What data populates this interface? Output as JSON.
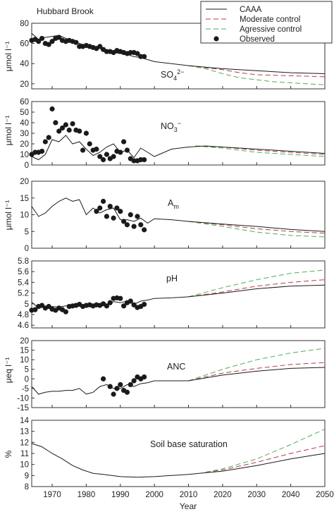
{
  "figure": {
    "site_label": "Hubbard Brook",
    "xlabel": "Year",
    "colors": {
      "caaa": "#1a1a1a",
      "moderate": "#b83a46",
      "aggressive": "#4caf50",
      "observed": "#1a1a1a"
    },
    "legend": {
      "entries": [
        {
          "label": "CAAA",
          "style": "solid",
          "color": "#1a1a1a"
        },
        {
          "label": "Moderate control",
          "style": "dashed",
          "color": "#b83a46"
        },
        {
          "label": "Agressive control",
          "style": "dashed",
          "color": "#4caf50"
        },
        {
          "label": "Observed",
          "style": "marker",
          "color": "#1a1a1a"
        }
      ]
    }
  },
  "chart_data": [
    {
      "type": "line",
      "title": "",
      "panel_label": "SO4",
      "panel_label_sub": "4",
      "panel_label_sup": "2−",
      "ylabel": "μmol l⁻¹",
      "xlim": [
        1964,
        2050
      ],
      "ylim": [
        15,
        80
      ],
      "yticks": [
        20,
        40,
        60,
        80
      ],
      "series": [
        {
          "name": "CAAA",
          "style": "solid",
          "x": [
            1964,
            1966,
            1968,
            1970,
            1972,
            1974,
            1976,
            1978,
            1980,
            1982,
            1984,
            1986,
            1988,
            1990,
            1992,
            1994,
            1996,
            1998,
            2000,
            2005,
            2010,
            2020,
            2030,
            2040,
            2050
          ],
          "y": [
            70,
            64,
            66,
            67,
            68,
            65,
            63,
            60,
            58,
            57,
            55,
            53,
            51,
            50,
            49,
            47,
            46,
            44,
            42,
            40,
            38,
            35,
            33,
            31,
            30
          ]
        },
        {
          "name": "Moderate control",
          "style": "dashed",
          "x": [
            2010,
            2015,
            2020,
            2025,
            2030,
            2040,
            2050
          ],
          "y": [
            38,
            36,
            34,
            31,
            29,
            28,
            27
          ]
        },
        {
          "name": "Agressive control",
          "style": "dashed",
          "x": [
            2010,
            2015,
            2020,
            2025,
            2030,
            2035,
            2040,
            2050
          ],
          "y": [
            38,
            35,
            30,
            26,
            24,
            22,
            21,
            19
          ]
        }
      ],
      "observed": {
        "x": [
          1964,
          1965,
          1966,
          1967,
          1968,
          1969,
          1970,
          1971,
          1972,
          1973,
          1974,
          1975,
          1976,
          1977,
          1978,
          1979,
          1980,
          1981,
          1982,
          1983,
          1984,
          1985,
          1986,
          1987,
          1988,
          1989,
          1990,
          1991,
          1992,
          1993,
          1994,
          1995,
          1996,
          1997
        ],
        "y": [
          63,
          64,
          62,
          65,
          60,
          59,
          62,
          65,
          66,
          63,
          62,
          63,
          62,
          61,
          57,
          57,
          58,
          57,
          56,
          55,
          57,
          54,
          52,
          52,
          51,
          53,
          52,
          51,
          50,
          51,
          51,
          50,
          47,
          47
        ]
      }
    },
    {
      "type": "line",
      "title": "",
      "panel_label": "NO3",
      "panel_label_sub": "3",
      "panel_label_sup": "−",
      "ylabel": "μmol l⁻¹",
      "xlim": [
        1964,
        2050
      ],
      "ylim": [
        0,
        60
      ],
      "yticks": [
        0,
        10,
        20,
        30,
        40,
        50,
        60
      ],
      "series": [
        {
          "name": "CAAA",
          "style": "solid",
          "x": [
            1964,
            1966,
            1968,
            1970,
            1972,
            1974,
            1976,
            1978,
            1980,
            1982,
            1984,
            1986,
            1988,
            1990,
            1992,
            1994,
            1996,
            1998,
            2000,
            2005,
            2010,
            2015,
            2020,
            2030,
            2040,
            2050
          ],
          "y": [
            8,
            5,
            10,
            24,
            22,
            28,
            20,
            22,
            15,
            9,
            12,
            17,
            20,
            12,
            14,
            7,
            16,
            12,
            8,
            15,
            17,
            18,
            17,
            15,
            13,
            11
          ]
        },
        {
          "name": "Moderate control",
          "style": "dashed",
          "x": [
            2012,
            2020,
            2030,
            2040,
            2050
          ],
          "y": [
            18,
            17,
            14,
            12,
            10
          ]
        },
        {
          "name": "Agressive control",
          "style": "dashed",
          "x": [
            2012,
            2020,
            2030,
            2040,
            2050
          ],
          "y": [
            18,
            16,
            12,
            10,
            8
          ]
        }
      ],
      "observed": {
        "x": [
          1964,
          1965,
          1966,
          1967,
          1968,
          1969,
          1970,
          1971,
          1972,
          1973,
          1974,
          1975,
          1976,
          1977,
          1978,
          1979,
          1980,
          1981,
          1982,
          1983,
          1984,
          1985,
          1986,
          1987,
          1988,
          1989,
          1990,
          1991,
          1992,
          1993,
          1994,
          1995,
          1996,
          1997
        ],
        "y": [
          10,
          12,
          12,
          13,
          22,
          26,
          53,
          40,
          32,
          35,
          38,
          33,
          39,
          33,
          32,
          14,
          30,
          20,
          14,
          15,
          8,
          5,
          10,
          6,
          8,
          13,
          12,
          22,
          14,
          6,
          4,
          4,
          5,
          5
        ]
      }
    },
    {
      "type": "line",
      "title": "",
      "panel_label": "Al",
      "panel_label_sub": "m",
      "ylabel": "μmol l⁻¹",
      "xlim": [
        1964,
        2050
      ],
      "ylim": [
        0,
        20
      ],
      "yticks": [
        0,
        5,
        10,
        15,
        20
      ],
      "series": [
        {
          "name": "CAAA",
          "style": "solid",
          "x": [
            1964,
            1966,
            1968,
            1970,
            1972,
            1974,
            1976,
            1978,
            1980,
            1982,
            1984,
            1986,
            1988,
            1990,
            1992,
            1994,
            1996,
            1998,
            2000,
            2005,
            2010,
            2020,
            2030,
            2040,
            2050
          ],
          "y": [
            12.5,
            9.5,
            10.5,
            12.5,
            14,
            15,
            14,
            14.5,
            10,
            12,
            10.5,
            11.5,
            12,
            8.5,
            8.5,
            8,
            9,
            7.5,
            8.8,
            8.5,
            8,
            7.2,
            6.5,
            5.6,
            5
          ]
        },
        {
          "name": "Moderate control",
          "style": "dashed",
          "x": [
            2010,
            2020,
            2030,
            2040,
            2050
          ],
          "y": [
            8,
            7,
            5.8,
            5,
            4.5
          ]
        },
        {
          "name": "Agressive control",
          "style": "dashed",
          "x": [
            2010,
            2020,
            2030,
            2040,
            2050
          ],
          "y": [
            8,
            6.5,
            4.8,
            3.8,
            3.4
          ]
        }
      ],
      "observed": {
        "x": [
          1983,
          1984,
          1985,
          1986,
          1987,
          1988,
          1989,
          1990,
          1991,
          1992,
          1993,
          1994,
          1995,
          1996,
          1997
        ],
        "y": [
          11,
          12,
          14,
          9.5,
          12.5,
          9,
          12,
          11,
          8,
          7,
          10,
          6.5,
          9.5,
          7,
          5.5
        ]
      }
    },
    {
      "type": "line",
      "title": "",
      "panel_label": "pH",
      "ylabel": "",
      "xlim": [
        1964,
        2050
      ],
      "ylim": [
        4.55,
        5.8
      ],
      "yticks": [
        4.6,
        4.8,
        5.0,
        5.2,
        5.4,
        5.6,
        5.8
      ],
      "series": [
        {
          "name": "CAAA",
          "style": "solid",
          "x": [
            1964,
            1966,
            1968,
            1970,
            1972,
            1974,
            1976,
            1978,
            1980,
            1982,
            1984,
            1986,
            1988,
            1990,
            1992,
            1994,
            1996,
            1998,
            2000,
            2005,
            2010,
            2020,
            2030,
            2040,
            2050
          ],
          "y": [
            5.03,
            4.92,
            4.95,
            4.95,
            4.94,
            4.96,
            4.97,
            4.96,
            4.98,
            4.97,
            4.98,
            4.99,
            5.04,
            5.02,
            5.05,
            4.99,
            5.05,
            5.07,
            5.1,
            5.11,
            5.13,
            5.2,
            5.28,
            5.33,
            5.35
          ]
        },
        {
          "name": "Moderate control",
          "style": "dashed",
          "x": [
            2010,
            2020,
            2030,
            2040,
            2050
          ],
          "y": [
            5.13,
            5.22,
            5.33,
            5.4,
            5.45
          ]
        },
        {
          "name": "Agressive control",
          "style": "dashed",
          "x": [
            2010,
            2020,
            2030,
            2040,
            2050
          ],
          "y": [
            5.13,
            5.3,
            5.45,
            5.57,
            5.63
          ]
        }
      ],
      "observed": {
        "x": [
          1964,
          1965,
          1966,
          1967,
          1968,
          1969,
          1970,
          1971,
          1972,
          1973,
          1974,
          1975,
          1976,
          1977,
          1978,
          1979,
          1980,
          1981,
          1982,
          1983,
          1984,
          1985,
          1986,
          1987,
          1988,
          1989,
          1990,
          1991,
          1992,
          1993,
          1994,
          1995,
          1996,
          1997
        ],
        "y": [
          4.88,
          4.89,
          4.95,
          4.97,
          4.92,
          4.95,
          4.9,
          4.88,
          4.92,
          4.89,
          4.85,
          4.95,
          4.96,
          4.97,
          4.99,
          4.95,
          4.97,
          4.98,
          4.96,
          4.98,
          4.97,
          5.0,
          4.96,
          5.02,
          5.1,
          5.11,
          5.1,
          4.96,
          5.02,
          5.05,
          4.98,
          4.93,
          4.95,
          4.99
        ]
      }
    },
    {
      "type": "line",
      "title": "",
      "panel_label": "ANC",
      "ylabel": "μeq l⁻¹",
      "xlim": [
        1964,
        2050
      ],
      "ylim": [
        -15,
        20
      ],
      "yticks": [
        -15,
        -10,
        -5,
        0,
        5,
        10,
        15,
        20
      ],
      "series": [
        {
          "name": "CAAA",
          "style": "solid",
          "x": [
            1964,
            1966,
            1968,
            1970,
            1972,
            1974,
            1976,
            1978,
            1980,
            1982,
            1984,
            1986,
            1988,
            1990,
            1992,
            1994,
            1996,
            1998,
            2000,
            2005,
            2010,
            2020,
            2030,
            2040,
            2050
          ],
          "y": [
            -4,
            -8,
            -7,
            -6.5,
            -6.5,
            -6,
            -6,
            -5,
            -8,
            -7,
            -4,
            -3,
            -5,
            -5,
            -3,
            -4,
            -2.5,
            -2,
            -1,
            -1,
            -1,
            2,
            4,
            5.5,
            6
          ]
        },
        {
          "name": "Moderate control",
          "style": "dashed",
          "x": [
            2010,
            2020,
            2030,
            2040,
            2050
          ],
          "y": [
            -1,
            3,
            5.5,
            7.5,
            8.5
          ]
        },
        {
          "name": "Agressive control",
          "style": "dashed",
          "x": [
            2010,
            2020,
            2030,
            2040,
            2050
          ],
          "y": [
            -1,
            5,
            10,
            13.5,
            16
          ]
        }
      ],
      "observed": {
        "x": [
          1985,
          1987,
          1988,
          1989,
          1990,
          1991,
          1992,
          1993,
          1994,
          1995,
          1996,
          1997
        ],
        "y": [
          0,
          -4,
          -8,
          -5,
          -3,
          -6,
          -7,
          -3,
          -1,
          1,
          0,
          1
        ]
      }
    },
    {
      "type": "line",
      "title": "",
      "panel_label": "Soil base saturation",
      "ylabel": "%",
      "xlim": [
        1964,
        2050
      ],
      "ylim": [
        8,
        14
      ],
      "yticks": [
        8,
        9,
        10,
        11,
        12,
        13,
        14
      ],
      "series": [
        {
          "name": "CAAA",
          "style": "solid",
          "x": [
            1964,
            1967,
            1970,
            1973,
            1976,
            1979,
            1982,
            1985,
            1990,
            1995,
            2000,
            2005,
            2010,
            2015,
            2020,
            2030,
            2040,
            2050
          ],
          "y": [
            11.9,
            11.6,
            11.0,
            10.5,
            9.9,
            9.5,
            9.2,
            9.1,
            8.9,
            8.85,
            8.9,
            9.0,
            9.1,
            9.25,
            9.4,
            9.9,
            10.5,
            11.0
          ]
        },
        {
          "name": "Moderate control",
          "style": "dashed",
          "x": [
            2015,
            2020,
            2030,
            2040,
            2050
          ],
          "y": [
            9.3,
            9.5,
            10.2,
            11.0,
            11.7
          ]
        },
        {
          "name": "Agressive control",
          "style": "dashed",
          "x": [
            2015,
            2020,
            2030,
            2040,
            2050
          ],
          "y": [
            9.3,
            9.6,
            10.5,
            11.8,
            13.2
          ]
        }
      ]
    }
  ],
  "x_axis": {
    "ticks": [
      1970,
      1980,
      1990,
      2000,
      2010,
      2020,
      2030,
      2040,
      2050
    ]
  }
}
